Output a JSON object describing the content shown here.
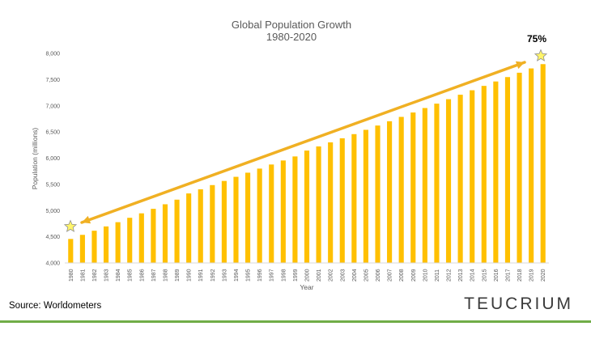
{
  "chart_data": {
    "type": "bar",
    "title": "Global Population Growth",
    "subtitle": "1980-2020",
    "xlabel": "Year",
    "ylabel": "Population (millions)",
    "ylim": [
      4000,
      8000
    ],
    "yticks": [
      4000,
      4500,
      5000,
      5500,
      6000,
      6500,
      7000,
      7500,
      8000
    ],
    "ytick_labels": [
      "4,000",
      "4,500",
      "5,000",
      "5,500",
      "6,000",
      "6,500",
      "7,000",
      "7,500",
      "8,000"
    ],
    "categories": [
      "1980",
      "1981",
      "1982",
      "1983",
      "1984",
      "1985",
      "1986",
      "1987",
      "1988",
      "1989",
      "1990",
      "1991",
      "1992",
      "1993",
      "1994",
      "1995",
      "1996",
      "1997",
      "1998",
      "1999",
      "2000",
      "2001",
      "2002",
      "2003",
      "2004",
      "2005",
      "2006",
      "2007",
      "2008",
      "2009",
      "2010",
      "2011",
      "2012",
      "2013",
      "2014",
      "2015",
      "2016",
      "2017",
      "2018",
      "2019",
      "2020"
    ],
    "values": [
      4458,
      4536,
      4615,
      4697,
      4778,
      4862,
      4947,
      5033,
      5120,
      5208,
      5327,
      5406,
      5486,
      5565,
      5644,
      5723,
      5801,
      5879,
      5956,
      6033,
      6145,
      6224,
      6302,
      6380,
      6459,
      6541,
      6623,
      6705,
      6788,
      6872,
      6957,
      7041,
      7126,
      7211,
      7296,
      7380,
      7464,
      7548,
      7631,
      7713,
      7795
    ],
    "annotation": "75%",
    "grid": false,
    "legend": "none"
  },
  "colors": {
    "bar": "#FFC000",
    "trend_arrow": "#F0B023",
    "star_fill": "#FFF56A",
    "star_stroke": "#8E8E8E",
    "footer_bar": "#70AD47",
    "text": "#595959"
  },
  "footer": {
    "source": "Source: Worldometers",
    "logo": "TEUCRIUM"
  }
}
